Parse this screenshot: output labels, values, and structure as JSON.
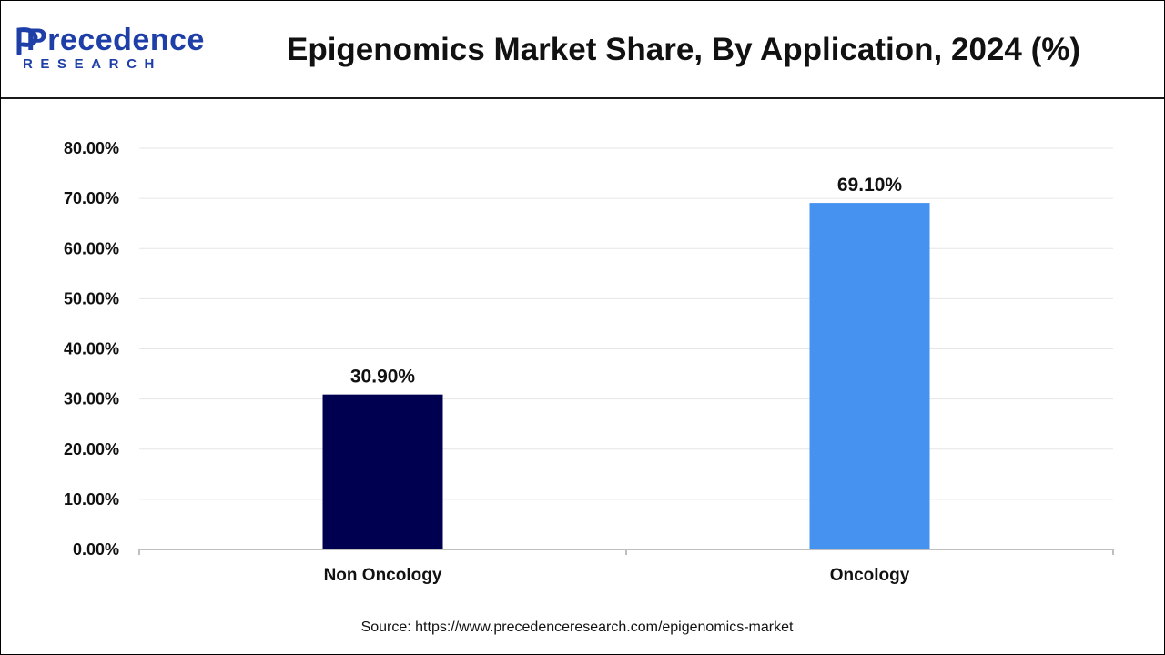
{
  "header": {
    "logo_top": "Precedence",
    "logo_bottom": "RESEARCH",
    "title": "Epigenomics Market Share, By Application, 2024 (%)"
  },
  "colors": {
    "brand": "#1f3fa8",
    "bar_non_oncology": "#000050",
    "bar_oncology": "#4592f0",
    "grid": "#e6e6e6",
    "axis": "#bfbfbf"
  },
  "chart_data": {
    "type": "bar",
    "categories": [
      "Non Oncology",
      "Oncology"
    ],
    "values": [
      30.9,
      69.1
    ],
    "value_labels": [
      "30.90%",
      "69.10%"
    ],
    "ylim": [
      0,
      80
    ],
    "yticks": [
      0,
      10,
      20,
      30,
      40,
      50,
      60,
      70,
      80
    ],
    "ytick_labels": [
      "0.00%",
      "10.00%",
      "20.00%",
      "30.00%",
      "40.00%",
      "50.00%",
      "60.00%",
      "70.00%",
      "80.00%"
    ],
    "grid": true,
    "legend": "none"
  },
  "source": "Source: https://www.precedenceresearch.com/epigenomics-market"
}
